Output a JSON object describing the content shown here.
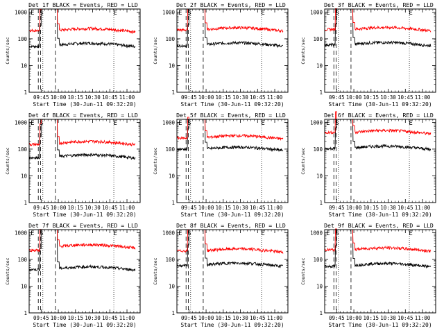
{
  "chart_data": [
    {
      "type": "line",
      "title": "Det 1f BLACK = Events, RED = LLD",
      "ylabel": "Counts/sec",
      "xlabel": "Start Time (30-Jun-11 09:32:20)",
      "series": [
        {
          "name": "Events",
          "color": "#000000",
          "pre": 52,
          "post": 58
        },
        {
          "name": "LLD",
          "color": "#ff0000",
          "pre": 205,
          "post": 205
        }
      ]
    },
    {
      "type": "line",
      "title": "Det 2f BLACK = Events, RED = LLD",
      "ylabel": "Counts/sec",
      "xlabel": "Start Time (30-Jun-11 09:32:20)",
      "series": [
        {
          "name": "Events",
          "color": "#000000",
          "pre": 55,
          "post": 60
        },
        {
          "name": "LLD",
          "color": "#ff0000",
          "pre": 215,
          "post": 220
        }
      ]
    },
    {
      "type": "line",
      "title": "Det 3f BLACK = Events, RED = LLD",
      "ylabel": "Counts/sec",
      "xlabel": "Start Time (30-Jun-11 09:32:20)",
      "series": [
        {
          "name": "Events",
          "color": "#000000",
          "pre": 60,
          "post": 62
        },
        {
          "name": "LLD",
          "color": "#ff0000",
          "pre": 225,
          "post": 225
        }
      ]
    },
    {
      "type": "line",
      "title": "Det 4f BLACK = Events, RED = LLD",
      "ylabel": "Counts/sec",
      "xlabel": "Start Time (30-Jun-11 09:32:20)",
      "series": [
        {
          "name": "Events",
          "color": "#000000",
          "pre": 48,
          "post": 52
        },
        {
          "name": "LLD",
          "color": "#ff0000",
          "pre": 150,
          "post": 165
        }
      ]
    },
    {
      "type": "line",
      "title": "Det 5f BLACK = Events, RED = LLD",
      "ylabel": "Counts/sec",
      "xlabel": "Start Time (30-Jun-11 09:32:20)",
      "series": [
        {
          "name": "Events",
          "color": "#000000",
          "pre": 100,
          "post": 100
        },
        {
          "name": "LLD",
          "color": "#ff0000",
          "pre": 260,
          "post": 270
        }
      ]
    },
    {
      "type": "line",
      "title": "Det 6f BLACK = Events, RED = LLD",
      "ylabel": "Counts/sec",
      "xlabel": "Start Time (30-Jun-11 09:32:20)",
      "series": [
        {
          "name": "Events",
          "color": "#000000",
          "pre": 105,
          "post": 110
        },
        {
          "name": "LLD",
          "color": "#ff0000",
          "pre": 420,
          "post": 420
        }
      ]
    },
    {
      "type": "line",
      "title": "Det 7f BLACK = Events, RED = LLD",
      "ylabel": "Counts/sec",
      "xlabel": "Start Time (30-Jun-11 09:32:20)",
      "series": [
        {
          "name": "Events",
          "color": "#000000",
          "pre": 42,
          "post": 45
        },
        {
          "name": "LLD",
          "color": "#ff0000",
          "pre": 220,
          "post": 300
        }
      ]
    },
    {
      "type": "line",
      "title": "Det 8f BLACK = Events, RED = LLD",
      "ylabel": "Counts/sec",
      "xlabel": "Start Time (30-Jun-11 09:32:20)",
      "series": [
        {
          "name": "Events",
          "color": "#000000",
          "pre": 58,
          "post": 62
        },
        {
          "name": "LLD",
          "color": "#ff0000",
          "pre": 210,
          "post": 210
        }
      ]
    },
    {
      "type": "line",
      "title": "Det 9f BLACK = Events, RED = LLD",
      "ylabel": "Counts/sec",
      "xlabel": "Start Time (30-Jun-11 09:32:20)",
      "series": [
        {
          "name": "Events",
          "color": "#000000",
          "pre": 55,
          "post": 60
        },
        {
          "name": "LLD",
          "color": "#ff0000",
          "pre": 230,
          "post": 230
        }
      ]
    }
  ],
  "axes": {
    "x_ticks": [
      "09:45",
      "10:00",
      "10:15",
      "10:30",
      "10:45",
      "11:00"
    ],
    "x_minutes": [
      0,
      15,
      30,
      45,
      60,
      75
    ],
    "x_range_minutes": [
      -10.5,
      86.5
    ],
    "y_ticks": [
      "1",
      "10",
      "100",
      "1000"
    ],
    "y_range": [
      1,
      1300
    ],
    "markers": [
      "E",
      "S",
      "E"
    ],
    "dashed_minutes": [
      -2.5,
      -0.5,
      12.5
    ],
    "dotted_minutes": [
      1.5,
      63.5
    ],
    "gap_minutes": [
      0,
      14
    ]
  }
}
